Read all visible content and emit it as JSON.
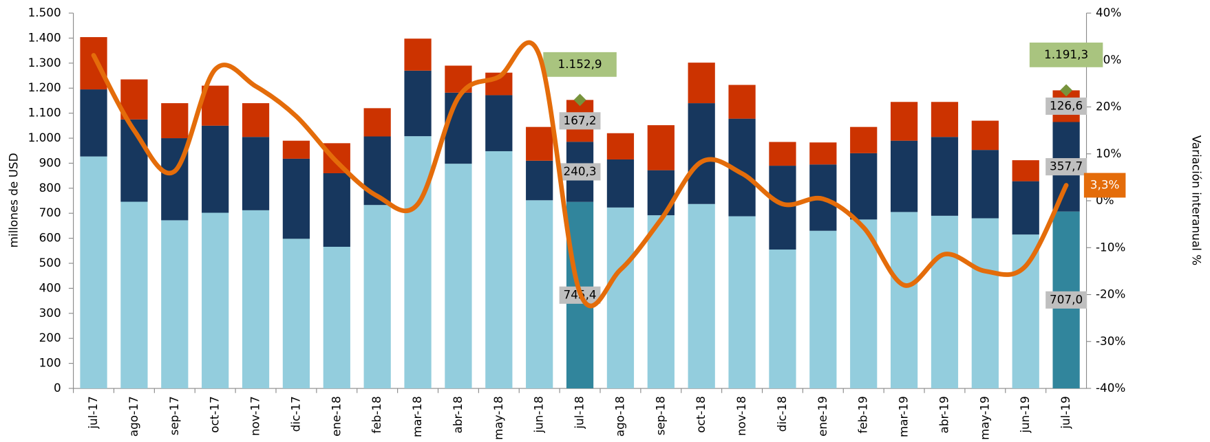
{
  "chart_data": {
    "type": "bar",
    "y_label": "millones de  USD",
    "y2_label": "Variación  interanual %",
    "categories": [
      "jul-17",
      "ago-17",
      "sep-17",
      "oct-17",
      "nov-17",
      "dic-17",
      "ene-18",
      "feb-18",
      "mar-18",
      "abr-18",
      "may-18",
      "jun-18",
      "jul-18",
      "ago-18",
      "sep-18",
      "oct-18",
      "nov-18",
      "dic-18",
      "ene-19",
      "feb-19",
      "mar-19",
      "abr-19",
      "may-19",
      "jun-19",
      "jul-19"
    ],
    "series": [
      {
        "color": "#93cddd",
        "colors": [
          "#93cddd",
          "#93cddd",
          "#93cddd",
          "#93cddd",
          "#93cddd",
          "#93cddd",
          "#93cddd",
          "#93cddd",
          "#93cddd",
          "#93cddd",
          "#93cddd",
          "#93cddd",
          "#31859c",
          "#93cddd",
          "#93cddd",
          "#93cddd",
          "#93cddd",
          "#93cddd",
          "#93cddd",
          "#93cddd",
          "#93cddd",
          "#93cddd",
          "#93cddd",
          "#93cddd",
          "#31859c"
        ],
        "values": [
          927,
          746,
          672,
          702,
          712,
          598,
          566,
          733,
          1008,
          898,
          948,
          752,
          745.4,
          723,
          692,
          737,
          688,
          555,
          630,
          675,
          705,
          690,
          680,
          615,
          707.0
        ],
        "value_labels": [
          null,
          null,
          null,
          null,
          null,
          null,
          null,
          null,
          null,
          null,
          null,
          null,
          "745,4",
          null,
          null,
          null,
          null,
          null,
          null,
          null,
          null,
          null,
          null,
          null,
          "707,0"
        ]
      },
      {
        "color": "#17375e",
        "values": [
          268,
          329,
          328,
          348,
          293,
          320,
          294,
          274,
          262,
          284,
          224,
          158,
          240.3,
          192,
          180,
          403,
          390,
          335,
          265,
          265,
          285,
          315,
          273,
          213,
          357.7
        ],
        "value_labels": [
          null,
          null,
          null,
          null,
          null,
          null,
          null,
          null,
          null,
          null,
          null,
          null,
          "240,3",
          null,
          null,
          null,
          null,
          null,
          null,
          null,
          null,
          null,
          null,
          null,
          "357,7"
        ]
      },
      {
        "color": "#cc3300",
        "values": [
          209,
          160,
          140,
          160,
          135,
          72,
          120,
          113,
          128,
          108,
          90,
          135,
          167.2,
          105,
          180,
          162,
          135,
          95,
          88,
          105,
          155,
          140,
          117,
          84,
          126.6
        ],
        "value_labels": [
          null,
          null,
          null,
          null,
          null,
          null,
          null,
          null,
          null,
          null,
          null,
          null,
          "167,2",
          null,
          null,
          null,
          null,
          null,
          null,
          null,
          null,
          null,
          null,
          null,
          "126,6"
        ]
      },
      {
        "type": "line",
        "axis": "y2",
        "color": "#e46c0a",
        "values": [
          31,
          15,
          6.3,
          28,
          24.4,
          18,
          8.3,
          1,
          -0.7,
          22,
          26.4,
          31,
          -19.6,
          -14.7,
          -4,
          8.3,
          5.8,
          -0.7,
          0.4,
          -5.7,
          -18,
          -11.4,
          -15,
          -13.9,
          3.3
        ],
        "value_labels": [
          null,
          null,
          null,
          null,
          null,
          null,
          null,
          null,
          null,
          null,
          null,
          null,
          null,
          null,
          null,
          null,
          null,
          null,
          null,
          null,
          null,
          null,
          null,
          null,
          "3,3%"
        ]
      }
    ],
    "annotations": [
      {
        "text": "1.152,9",
        "category": 12
      },
      {
        "text": "1.191,3",
        "category": 24
      }
    ],
    "ylim": [
      0,
      1500
    ],
    "yticks": [
      0,
      100,
      200,
      300,
      400,
      500,
      600,
      700,
      800,
      900,
      {
        "value": 1000,
        "label": "1.000"
      },
      {
        "value": 1100,
        "label": "1.100"
      },
      {
        "value": 1200,
        "label": "1.200"
      },
      {
        "value": 1300,
        "label": "1.300"
      },
      {
        "value": 1400,
        "label": "1.400"
      },
      {
        "value": 1500,
        "label": "1.500"
      }
    ],
    "y2lim": [
      -40,
      40
    ],
    "y2ticks": [
      {
        "value": -40,
        "label": "-40%"
      },
      {
        "value": -30,
        "label": "-30%"
      },
      {
        "value": -20,
        "label": "-20%"
      },
      {
        "value": -10,
        "label": "-10%"
      },
      {
        "value": 0,
        "label": "0%"
      },
      {
        "value": 10,
        "label": "10%"
      },
      {
        "value": 20,
        "label": "20%"
      },
      {
        "value": 30,
        "label": "30%"
      },
      {
        "value": 40,
        "label": "40%"
      }
    ]
  }
}
